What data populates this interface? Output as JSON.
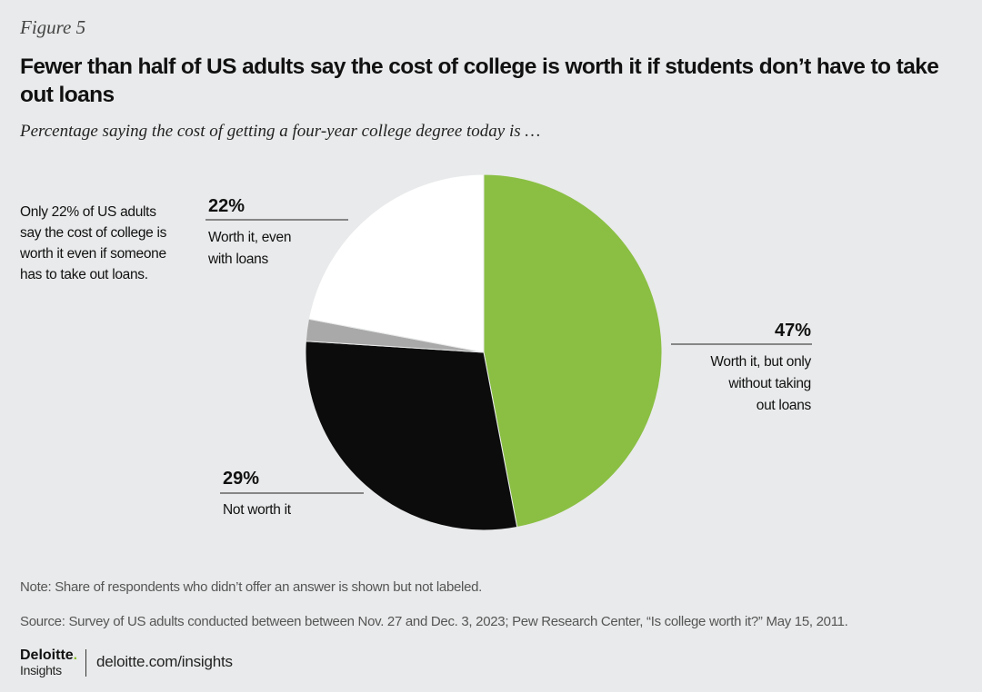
{
  "figure_label": "Figure 5",
  "title": "Fewer than half of US adults say the cost of college is worth it if students don’t have to take out loans",
  "subtitle": "Percentage saying the cost of getting a four-year college degree today is …",
  "side_note": "Only 22% of US adults say the cost of college is worth it even if someone has to take out loans.",
  "chart_data": {
    "type": "pie",
    "slices": [
      {
        "pct_label": "47%",
        "value": 47,
        "lines": [
          "Worth it, but only",
          "without taking",
          "out loans"
        ],
        "color": "#8abf43"
      },
      {
        "pct_label": "29%",
        "value": 29,
        "lines": [
          "Not worth it"
        ],
        "color": "#0c0c0c"
      },
      {
        "pct_label": "",
        "value": 2,
        "lines": [],
        "color": "#a9a9a9"
      },
      {
        "pct_label": "22%",
        "value": 22,
        "lines": [
          "Worth it, even",
          "with loans"
        ],
        "color": "#ffffff"
      }
    ]
  },
  "note": "Note: Share of respondents who didn’t offer an answer is shown but not labeled.",
  "source": "Source: Survey of US adults conducted between between Nov. 27 and Dec. 3, 2023; Pew Research Center, “Is college worth it?” May 15, 2011.",
  "footer": {
    "brand": "Deloitte",
    "brand_dot": ".",
    "brand_sub": "Insights",
    "url": "deloitte.com/insights"
  }
}
